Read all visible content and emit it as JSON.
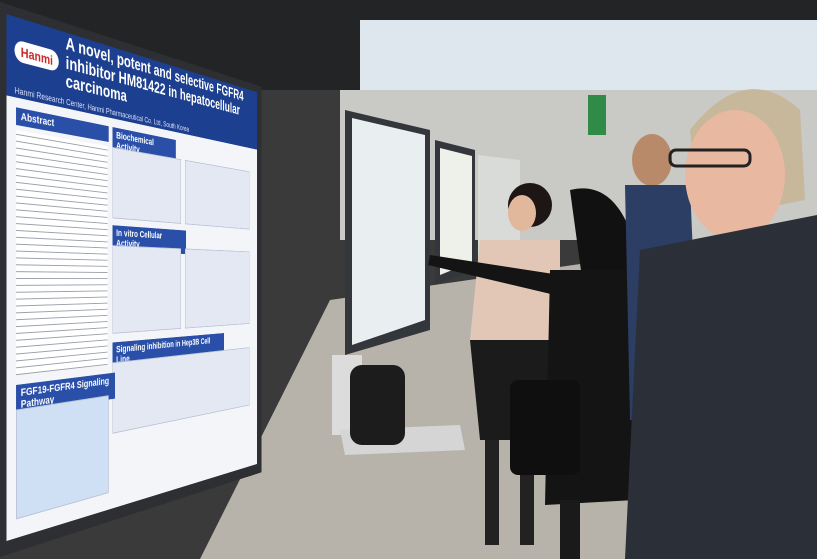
{
  "poster": {
    "logo": "Hanmi",
    "title": "A novel, potent and selective FGFR4 inhibitor HM81422 in hepatocellular carcinoma",
    "affiliation": "Hanmi Research Center, Hanmi Pharmaceutical Co. Ltd, South Korea",
    "sections": [
      "Abstract",
      "Biochemical Activity",
      "In vitro Cellular Activity",
      "Signaling inhibition in Hep3B Cell Line",
      "FGF19-FGFR4 Signaling Pathway"
    ]
  }
}
